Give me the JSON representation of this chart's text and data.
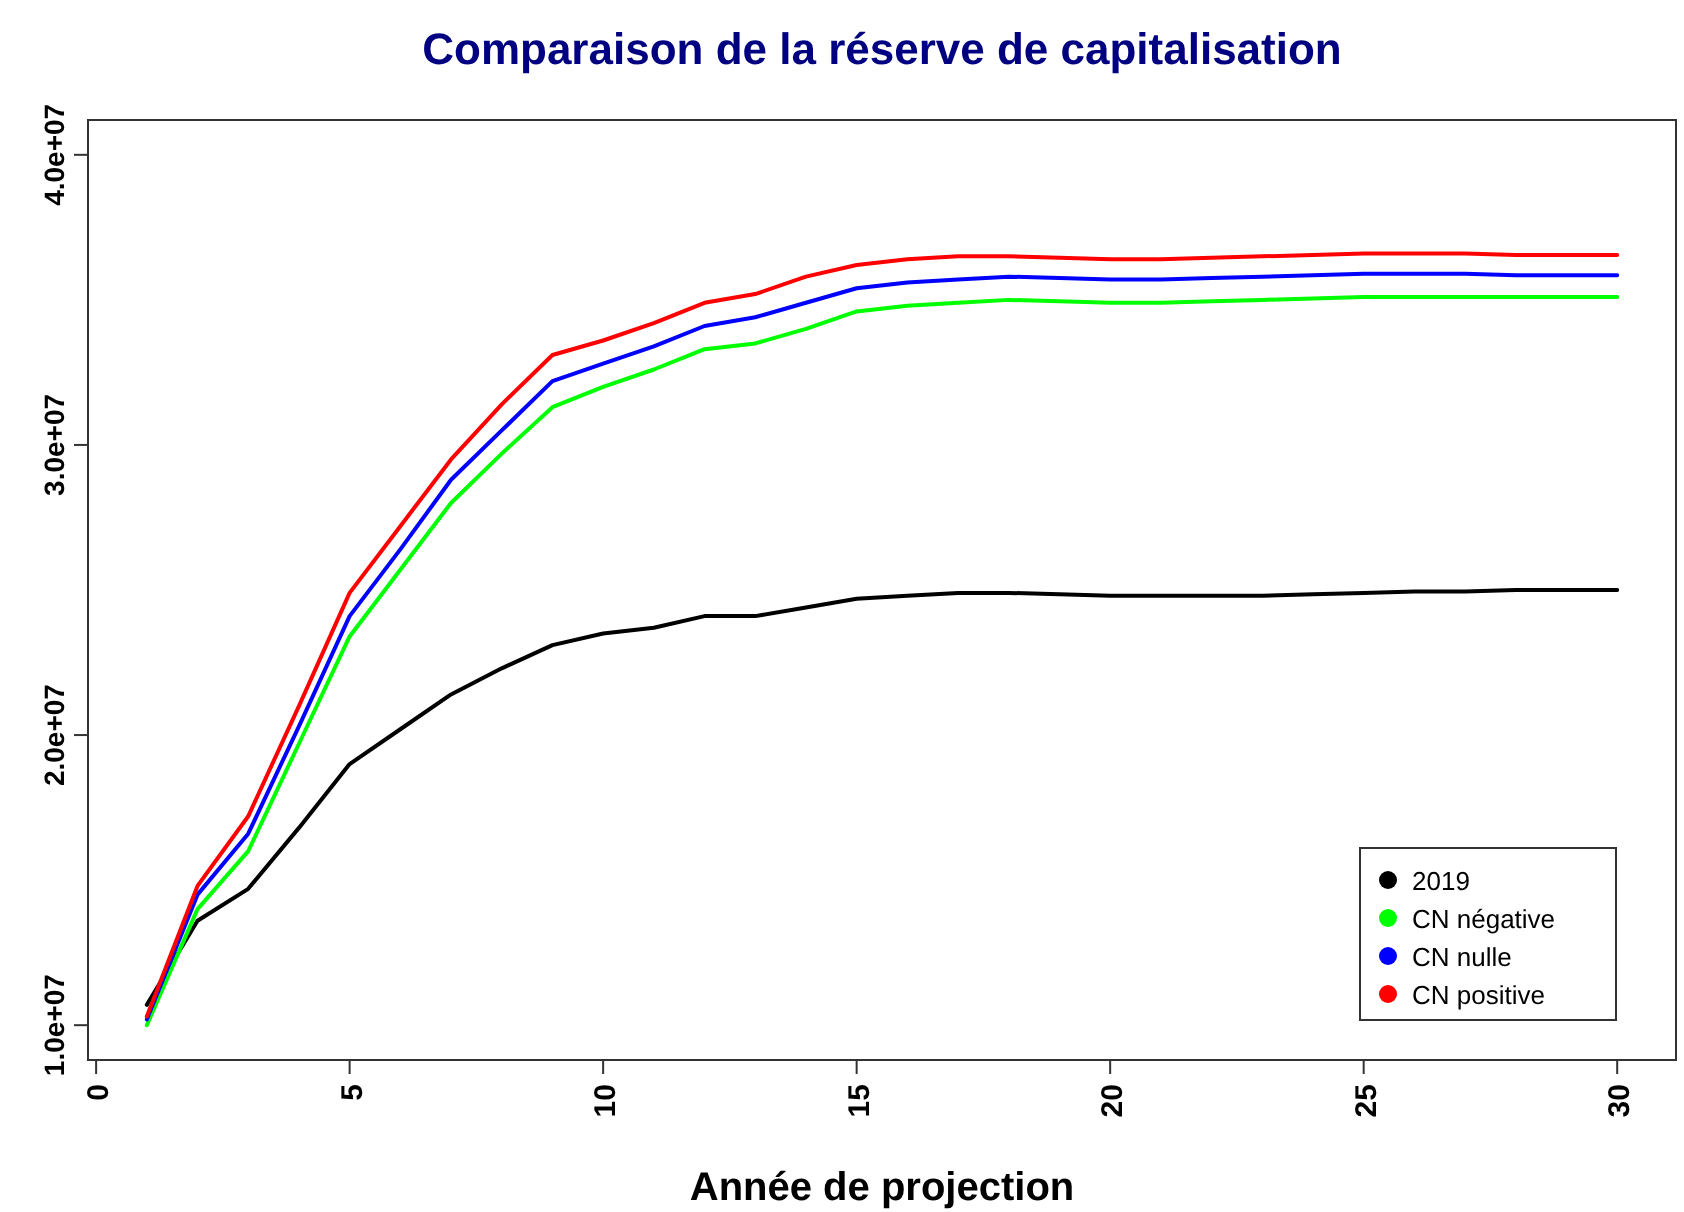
{
  "chart_data": {
    "type": "line",
    "title": "Comparaison de la réserve de capitalisation",
    "xlabel": "Année de projection",
    "x": [
      1,
      2,
      3,
      4,
      5,
      6,
      7,
      8,
      9,
      10,
      11,
      12,
      13,
      14,
      15,
      16,
      17,
      18,
      19,
      20,
      21,
      22,
      23,
      24,
      25,
      26,
      27,
      28,
      29,
      30
    ],
    "series": [
      {
        "name": "2019",
        "color": "#000000",
        "values": [
          10700000.0,
          13600000.0,
          14700000.0,
          16800000.0,
          19000000.0,
          20200000.0,
          21400000.0,
          22300000.0,
          23100000.0,
          23500000.0,
          23700000.0,
          24100000.0,
          24100000.0,
          24400000.0,
          24700000.0,
          24800000.0,
          24900000.0,
          24900000.0,
          24850000.0,
          24800000.0,
          24800000.0,
          24800000.0,
          24800000.0,
          24850000.0,
          24900000.0,
          24950000.0,
          24950000.0,
          25000000.0,
          25000000.0,
          25000000.0
        ]
      },
      {
        "name": "CN négative",
        "color": "#00ff00",
        "values": [
          10000000.0,
          14000000.0,
          16000000.0,
          19700000.0,
          23400000.0,
          25700000.0,
          28000000.0,
          29700000.0,
          31300000.0,
          32000000.0,
          32600000.0,
          33300000.0,
          33500000.0,
          34000000.0,
          34600000.0,
          34800000.0,
          34900000.0,
          35000000.0,
          34950000.0,
          34900000.0,
          34900000.0,
          34950000.0,
          35000000.0,
          35050000.0,
          35100000.0,
          35100000.0,
          35100000.0,
          35100000.0,
          35100000.0,
          35100000.0
        ]
      },
      {
        "name": "CN nulle",
        "color": "#0000ff",
        "values": [
          10200000.0,
          14500000.0,
          16600000.0,
          20300000.0,
          24100000.0,
          26400000.0,
          28800000.0,
          30500000.0,
          32200000.0,
          32800000.0,
          33400000.0,
          34100000.0,
          34400000.0,
          34900000.0,
          35400000.0,
          35600000.0,
          35700000.0,
          35800000.0,
          35750000.0,
          35700000.0,
          35700000.0,
          35750000.0,
          35800000.0,
          35850000.0,
          35900000.0,
          35900000.0,
          35900000.0,
          35850000.0,
          35850000.0,
          35850000.0
        ]
      },
      {
        "name": "CN positive",
        "color": "#ff0000",
        "values": [
          10300000.0,
          14800000.0,
          17200000.0,
          21000000.0,
          24900000.0,
          27200000.0,
          29500000.0,
          31400000.0,
          33100000.0,
          33600000.0,
          34200000.0,
          34900000.0,
          35200000.0,
          35800000.0,
          36200000.0,
          36400000.0,
          36500000.0,
          36500000.0,
          36450000.0,
          36400000.0,
          36400000.0,
          36450000.0,
          36500000.0,
          36550000.0,
          36600000.0,
          36600000.0,
          36600000.0,
          36550000.0,
          36550000.0,
          36550000.0
        ]
      }
    ],
    "xlim": [
      -0.16,
      31.16
    ],
    "xticks": [
      0,
      5,
      10,
      15,
      20,
      25,
      30
    ],
    "ylim": [
      8800000,
      41200000
    ],
    "yticks": [
      {
        "value": 10000000,
        "label": "1.0e+07"
      },
      {
        "value": 20000000,
        "label": "2.0e+07"
      },
      {
        "value": 30000000,
        "label": "3.0e+07"
      },
      {
        "value": 40000000,
        "label": "4.0e+07"
      }
    ],
    "legend": "bottom right",
    "grid": false,
    "marker": "none",
    "line_style": "solid"
  }
}
